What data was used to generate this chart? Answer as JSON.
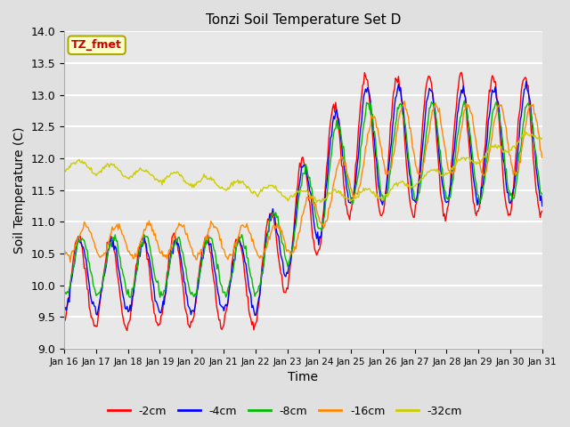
{
  "title": "Tonzi Soil Temperature Set D",
  "xlabel": "Time",
  "ylabel": "Soil Temperature (C)",
  "legend_label": "TZ_fmet",
  "series_labels": [
    "-2cm",
    "-4cm",
    "-8cm",
    "-16cm",
    "-32cm"
  ],
  "series_colors": [
    "#ff0000",
    "#0000ff",
    "#00bb00",
    "#ff8800",
    "#cccc00"
  ],
  "ylim": [
    9.0,
    14.0
  ],
  "yticks": [
    9.0,
    9.5,
    10.0,
    10.5,
    11.0,
    11.5,
    12.0,
    12.5,
    13.0,
    13.5,
    14.0
  ],
  "xtick_labels": [
    "Jan 16",
    "Jan 17",
    "Jan 18",
    "Jan 19",
    "Jan 20",
    "Jan 21",
    "Jan 22",
    "Jan 23",
    "Jan 24",
    "Jan 25",
    "Jan 26",
    "Jan 27",
    "Jan 28",
    "Jan 29",
    "Jan 30",
    "Jan 31"
  ],
  "bg_color": "#e0e0e0",
  "plot_bg_color": "#e8e8e8",
  "grid_color": "#ffffff",
  "n_points": 480,
  "days": 15
}
